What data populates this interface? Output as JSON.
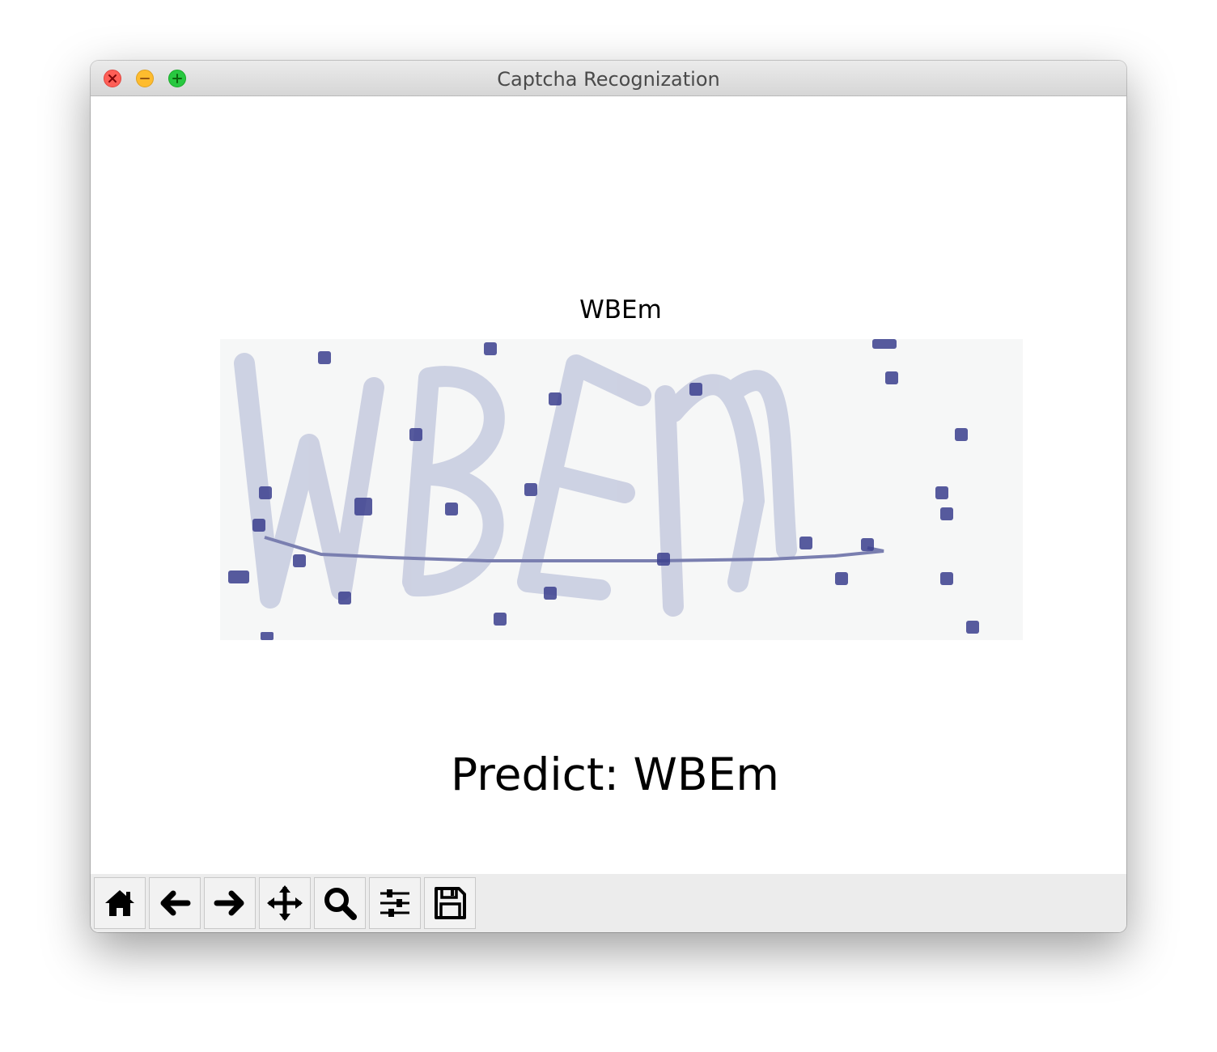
{
  "window": {
    "title": "Captcha Recognization"
  },
  "figure": {
    "axes_title": "WBEm",
    "image_text": "WBEm",
    "predict_label": "Predict: WBEm"
  },
  "toolbar": {
    "buttons": [
      {
        "icon": "home-icon"
      },
      {
        "icon": "back-arrow-icon"
      },
      {
        "icon": "forward-arrow-icon"
      },
      {
        "icon": "pan-move-icon"
      },
      {
        "icon": "zoom-magnifier-icon"
      },
      {
        "icon": "configure-subplots-icon"
      },
      {
        "icon": "save-floppy-icon"
      }
    ]
  },
  "colors": {
    "captcha_background": "#f6f7f7",
    "captcha_stroke": "#c8cce0",
    "noise_dot": "#3b3f8e",
    "noise_line": "#7a7fb0"
  }
}
